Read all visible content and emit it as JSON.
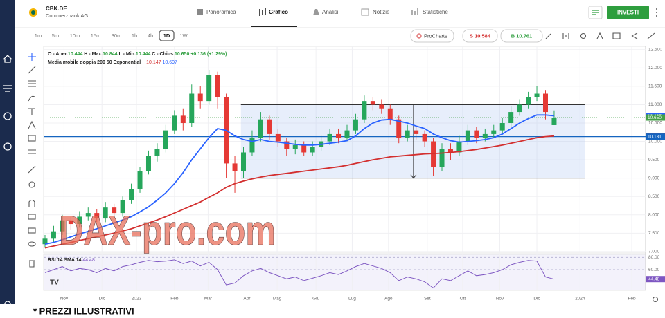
{
  "header": {
    "ticker": "CBK.DE",
    "company": "Commerzbank AG",
    "tabs": [
      "Panoramica",
      "Grafico",
      "Analisi",
      "Notizie",
      "Statistiche"
    ],
    "invest_button": "INVESTI"
  },
  "toolbar": {
    "timeframes": [
      "1m",
      "5m",
      "10m",
      "15m",
      "30m",
      "1h",
      "4h",
      "1D",
      "1W"
    ],
    "procharts": "ProCharts",
    "sell": "S 10.584",
    "buy": "B 10.761"
  },
  "chart_data": {
    "type": "candlestick",
    "ohlc_legend": [
      {
        "label": "O - Aper.",
        "value": "10.444"
      },
      {
        "label": "H - Max.",
        "value": "10.844"
      },
      {
        "label": "L - Min.",
        "value": "10.444"
      },
      {
        "label": "C - Chius.",
        "value": "10.650"
      }
    ],
    "change": "+0.136 (+1.29%)",
    "ma_legend": "Media mobile doppia 200 50 Exponential",
    "up_color": "#26a65b",
    "down_color": "#e53935",
    "x": [
      0,
      1,
      2,
      3,
      4,
      5,
      6,
      7,
      8,
      9,
      10,
      11,
      12,
      13,
      14,
      15,
      16,
      17,
      18,
      19,
      20,
      21,
      22,
      23,
      24,
      25,
      26,
      27,
      28,
      29,
      30,
      31,
      32,
      33,
      34,
      35,
      36,
      37,
      38,
      39,
      40,
      41,
      42,
      43,
      44,
      45,
      46,
      47,
      48,
      49,
      50,
      51,
      52,
      53,
      54,
      55,
      56,
      57,
      58,
      59
    ],
    "open": [
      7.2,
      7.35,
      7.55,
      7.85,
      7.75,
      7.95,
      8.05,
      7.9,
      8.2,
      8.05,
      8.4,
      8.7,
      9.2,
      9.6,
      9.8,
      10.3,
      10.7,
      10.5,
      11.3,
      11.1,
      11.8,
      11.2,
      9.4,
      9.2,
      9.7,
      10.1,
      10.6,
      10.2,
      10.0,
      9.8,
      9.9,
      9.7,
      9.85,
      10.0,
      10.2,
      10.1,
      10.3,
      10.6,
      11.1,
      11.0,
      10.9,
      10.6,
      10.1,
      10.3,
      10.2,
      10.0,
      9.3,
      9.8,
      9.7,
      10.0,
      10.3,
      10.1,
      10.2,
      10.3,
      10.5,
      10.8,
      11.0,
      11.2,
      11.3,
      10.444
    ],
    "high": [
      7.45,
      7.7,
      8.0,
      7.95,
      8.1,
      8.2,
      8.15,
      8.35,
      8.3,
      8.5,
      8.85,
      9.3,
      9.75,
      9.95,
      10.45,
      10.85,
      10.9,
      11.55,
      11.5,
      11.95,
      11.9,
      11.3,
      9.6,
      9.85,
      10.3,
      10.8,
      10.7,
      10.35,
      10.1,
      10.05,
      10.0,
      10.0,
      10.15,
      10.35,
      10.35,
      10.45,
      10.75,
      11.25,
      11.2,
      11.15,
      11.0,
      10.7,
      10.45,
      10.4,
      10.3,
      10.1,
      9.95,
      9.95,
      10.15,
      10.45,
      10.4,
      10.35,
      10.45,
      10.65,
      10.95,
      11.15,
      11.35,
      11.5,
      11.4,
      10.844
    ],
    "low": [
      7.1,
      7.25,
      7.45,
      7.6,
      7.65,
      7.85,
      7.8,
      7.8,
      7.95,
      7.95,
      8.3,
      8.6,
      9.1,
      9.45,
      9.7,
      10.2,
      10.3,
      10.4,
      10.9,
      11.0,
      10.9,
      9.0,
      8.6,
      9.0,
      9.6,
      10.0,
      10.05,
      9.85,
      9.6,
      9.65,
      9.6,
      9.6,
      9.75,
      9.9,
      9.95,
      10.0,
      10.2,
      10.5,
      10.85,
      10.75,
      10.45,
      9.95,
      10.0,
      10.05,
      9.85,
      9.05,
      9.2,
      9.5,
      9.6,
      9.9,
      9.95,
      10.0,
      10.1,
      10.2,
      10.4,
      10.7,
      10.9,
      11.1,
      10.6,
      10.444
    ],
    "close": [
      7.35,
      7.55,
      7.85,
      7.75,
      7.95,
      8.05,
      7.9,
      8.2,
      8.05,
      8.4,
      8.7,
      9.2,
      9.6,
      9.8,
      10.3,
      10.7,
      10.5,
      11.3,
      11.1,
      11.8,
      11.2,
      9.4,
      9.2,
      9.7,
      10.1,
      10.6,
      10.2,
      10.0,
      9.8,
      9.9,
      9.7,
      9.85,
      10.0,
      10.2,
      10.1,
      10.3,
      10.6,
      11.1,
      11.0,
      10.9,
      10.6,
      10.1,
      10.3,
      10.2,
      10.0,
      9.3,
      9.8,
      9.7,
      10.0,
      10.3,
      10.1,
      10.2,
      10.3,
      10.5,
      10.8,
      11.0,
      11.2,
      11.3,
      10.8,
      10.65
    ],
    "moving_averages": [
      {
        "color": "#d32f2f",
        "last_label": "10.147",
        "values": [
          7.1,
          7.15,
          7.2,
          7.25,
          7.3,
          7.35,
          7.4,
          7.45,
          7.5,
          7.56,
          7.62,
          7.7,
          7.78,
          7.86,
          7.95,
          8.05,
          8.15,
          8.25,
          8.35,
          8.48,
          8.6,
          8.75,
          8.85,
          8.92,
          8.98,
          9.03,
          9.07,
          9.1,
          9.13,
          9.16,
          9.19,
          9.22,
          9.25,
          9.28,
          9.31,
          9.35,
          9.4,
          9.45,
          9.5,
          9.54,
          9.58,
          9.6,
          9.62,
          9.64,
          9.66,
          9.67,
          9.68,
          9.7,
          9.72,
          9.75,
          9.78,
          9.82,
          9.86,
          9.9,
          9.95,
          10.0,
          10.05,
          10.1,
          10.13,
          10.147
        ]
      },
      {
        "color": "#2962ff",
        "last_label": "10.697",
        "values": [
          7.2,
          7.25,
          7.32,
          7.4,
          7.48,
          7.55,
          7.62,
          7.7,
          7.78,
          7.86,
          7.95,
          8.08,
          8.22,
          8.4,
          8.6,
          8.85,
          9.15,
          9.5,
          9.8,
          10.1,
          10.35,
          10.3,
          10.15,
          10.05,
          10.0,
          10.05,
          10.0,
          9.98,
          9.95,
          9.92,
          9.9,
          9.9,
          9.92,
          9.95,
          9.98,
          10.02,
          10.15,
          10.35,
          10.5,
          10.58,
          10.6,
          10.55,
          10.5,
          10.42,
          10.35,
          10.2,
          10.1,
          10.02,
          9.98,
          10.0,
          10.02,
          10.05,
          10.1,
          10.2,
          10.35,
          10.5,
          10.62,
          10.72,
          10.72,
          10.697
        ]
      }
    ],
    "price_labels": [
      {
        "value": 10.697,
        "label": "10.697",
        "color": "#2962ff",
        "line": "none"
      },
      {
        "value": 10.65,
        "label": "10.650",
        "color": "#43a047",
        "line": "dotted"
      },
      {
        "value": 10.147,
        "label": "10.147",
        "color": "#d32f2f",
        "line": "none"
      },
      {
        "value": 10.131,
        "label": "10.131",
        "color": "#1565c0",
        "line": "solid"
      }
    ],
    "range_box": {
      "top": 11.0,
      "bottom": 9.0,
      "start": 22.7,
      "end": 62.6,
      "arrow_at": 42.7
    },
    "xlim": [
      -0.16,
      69.6
    ],
    "xticks": [
      {
        "value": 2.2,
        "label": "Nov"
      },
      {
        "value": 6.6,
        "label": "Dic"
      },
      {
        "value": 10.6,
        "label": "2023"
      },
      {
        "value": 15.0,
        "label": "Feb"
      },
      {
        "value": 18.9,
        "label": "Mar"
      },
      {
        "value": 23.4,
        "label": "Apr"
      },
      {
        "value": 26.9,
        "label": "Mag"
      },
      {
        "value": 31.4,
        "label": "Giu"
      },
      {
        "value": 35.6,
        "label": "Lug"
      },
      {
        "value": 39.8,
        "label": "Ago"
      },
      {
        "value": 44.3,
        "label": "Set"
      },
      {
        "value": 48.4,
        "label": "Ott"
      },
      {
        "value": 52.7,
        "label": "Nov"
      },
      {
        "value": 57.0,
        "label": "Dic"
      },
      {
        "value": 62.0,
        "label": "2024"
      },
      {
        "value": 68.0,
        "label": "Feb"
      }
    ],
    "ylim": [
      6.96,
      12.59
    ],
    "yticks": [
      {
        "value": 12.5,
        "label": "12.500"
      },
      {
        "value": 12.0,
        "label": "12.000"
      },
      {
        "value": 11.5,
        "label": "11.500"
      },
      {
        "value": 11.0,
        "label": "11.000"
      },
      {
        "value": 10.5,
        "label": "10.500"
      },
      {
        "value": 10.0,
        "label": "10.000"
      },
      {
        "value": 9.5,
        "label": "9.500"
      },
      {
        "value": 9.0,
        "label": "9.000"
      },
      {
        "value": 8.5,
        "label": "8.500"
      },
      {
        "value": 8.0,
        "label": "8.000"
      },
      {
        "value": 7.5,
        "label": "7.500"
      },
      {
        "value": 7.0,
        "label": "7.000"
      }
    ],
    "grid": true,
    "rsi": {
      "title": "RSI 14 SMA 14",
      "value_label": "44.48",
      "color": "#7e57c2",
      "values": [
        55,
        60,
        65,
        58,
        62,
        60,
        55,
        62,
        58,
        65,
        68,
        72,
        75,
        73,
        74,
        76,
        70,
        74,
        66,
        72,
        60,
        35,
        38,
        50,
        58,
        62,
        55,
        50,
        45,
        48,
        42,
        46,
        50,
        55,
        52,
        58,
        65,
        70,
        66,
        62,
        55,
        42,
        48,
        45,
        40,
        30,
        45,
        42,
        50,
        58,
        50,
        52,
        55,
        60,
        68,
        72,
        75,
        74,
        48,
        44.48
      ],
      "ylim": [
        26,
        85
      ],
      "yticks": [
        {
          "value": 80,
          "label": "80.00"
        },
        {
          "value": 60,
          "label": "60.00"
        }
      ]
    }
  },
  "watermark": "DAX-pro.com",
  "footer": "* PREZZI ILLUSTRATIVI"
}
